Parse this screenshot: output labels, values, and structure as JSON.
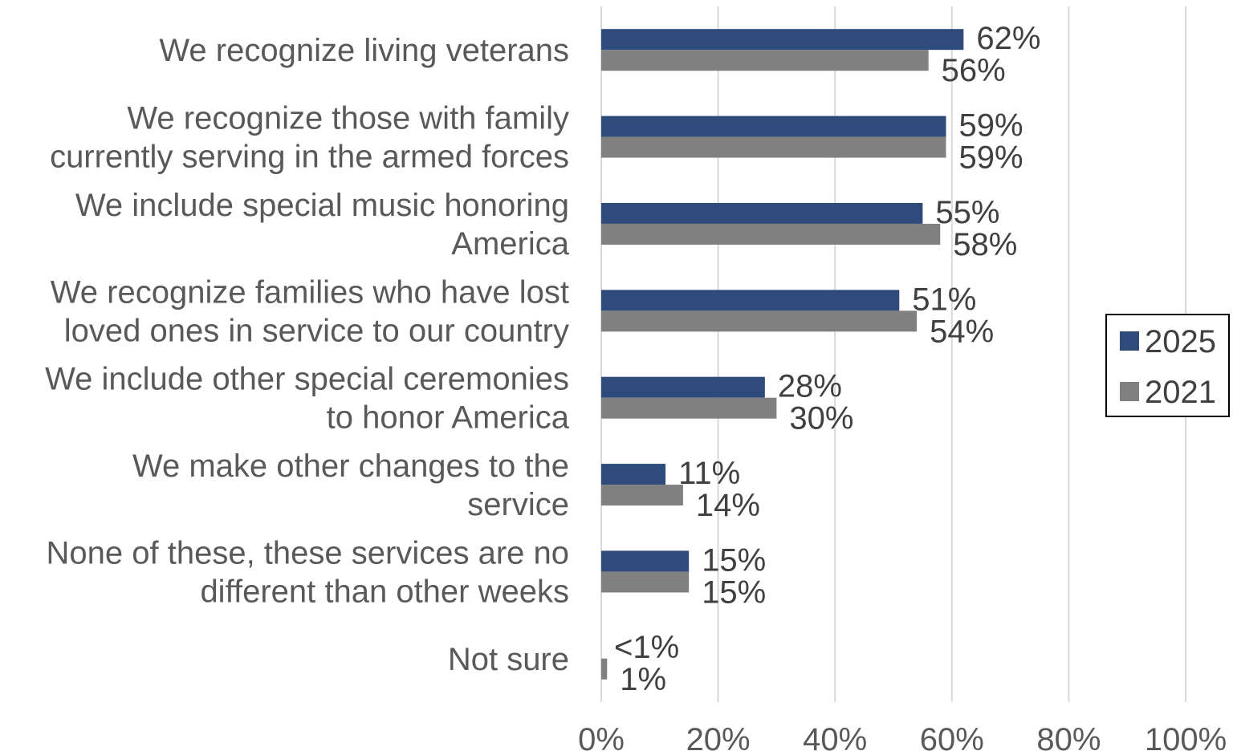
{
  "chart_data": {
    "type": "bar",
    "orientation": "horizontal",
    "categories": [
      [
        "We recognize living veterans"
      ],
      [
        "We recognize those with family",
        "currently serving in the armed forces"
      ],
      [
        "We include special music honoring",
        "America"
      ],
      [
        "We recognize families who have lost",
        "loved ones in service to our country"
      ],
      [
        "We include other special ceremonies",
        "to honor America"
      ],
      [
        "We make other changes to the",
        "service"
      ],
      [
        "None of these, these services are no",
        "different than other weeks"
      ],
      [
        "Not sure"
      ]
    ],
    "series": [
      {
        "name": "2025",
        "color": "#2f4b7c",
        "values": [
          62,
          59,
          55,
          51,
          28,
          11,
          15,
          0
        ],
        "labels": [
          "62%",
          "59%",
          "55%",
          "51%",
          "28%",
          "11%",
          "15%",
          "<1%"
        ]
      },
      {
        "name": "2021",
        "color": "#808080",
        "values": [
          56,
          59,
          58,
          54,
          30,
          14,
          15,
          1
        ],
        "labels": [
          "56%",
          "59%",
          "58%",
          "54%",
          "30%",
          "14%",
          "15%",
          "1%"
        ]
      }
    ],
    "xlim": [
      0,
      100
    ],
    "xticks": [
      0,
      20,
      40,
      60,
      80,
      100
    ],
    "xtick_labels": [
      "0%",
      "20%",
      "40%",
      "60%",
      "80%",
      "100%"
    ],
    "grid": true,
    "legend_position": "right"
  }
}
